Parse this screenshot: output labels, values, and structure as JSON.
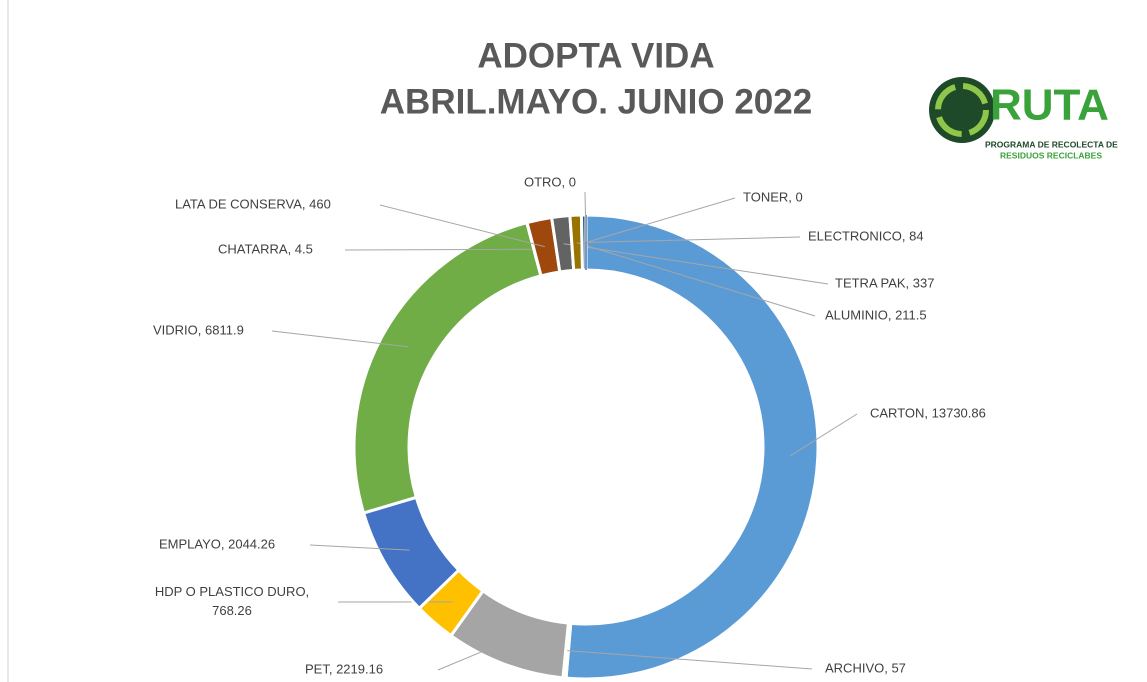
{
  "chart_data": {
    "type": "donut",
    "title": [
      "ADOPTA VIDA",
      "ABRIL.MAYO. JUNIO 2022"
    ],
    "logo": {
      "name": "RUTA",
      "line1": "PROGRAMA DE RECOLECTA DE",
      "line2": "RESIDUOS RECICLABES"
    },
    "categories": [
      "CARTON",
      "ARCHIVO",
      "PET",
      "HDP O PLASTICO DURO",
      "EMPLAYO",
      "VIDRIO",
      "CHATARRA",
      "LATA DE CONSERVA",
      "TETRA PAK",
      "ALUMINIO",
      "ELECTRONICO",
      "TONER",
      "OTRO"
    ],
    "values": [
      13730.86,
      57,
      2219.16,
      768.26,
      2044.26,
      6811.9,
      4.5,
      460,
      337,
      211.5,
      84,
      0,
      0
    ],
    "value_labels": [
      "CARTON, 13730.86",
      "ARCHIVO, 57",
      "PET, 2219.16",
      "HDP O PLASTICO DURO, 768.26",
      "EMPLAYO, 2044.26",
      "VIDRIO, 6811.9",
      "CHATARRA, 4.5",
      "LATA DE CONSERVA, 460",
      "TETRA PAK, 337",
      "ALUMINIO, 211.5",
      "ELECTRONICO, 84",
      "TONER, 0",
      "OTRO, 0"
    ],
    "colors": [
      "#5b9bd5",
      "#ed7d31",
      "#a5a5a5",
      "#ffc000",
      "#4472c4",
      "#70ad47",
      "#264478",
      "#9e480e",
      "#636363",
      "#997300",
      "#255e91",
      "#43682b",
      "#698ed0"
    ]
  }
}
